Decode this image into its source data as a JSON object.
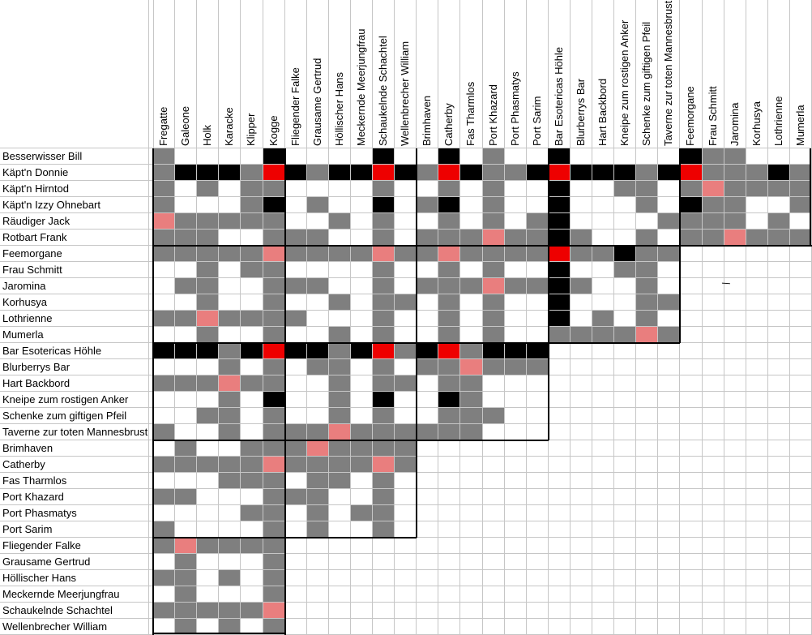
{
  "sheet": {
    "cell_colors": {
      "w": "#ffffff",
      "g": "#7f7f7f",
      "b": "#000000",
      "r": "#ee0000",
      "p": "#e97e7e"
    },
    "columns": [
      "Fregatte",
      "Galeone",
      "Holk",
      "Karacke",
      "Klipper",
      "Kogge",
      "Fliegender Falke",
      "Grausame Gertrud",
      "Höllischer Hans",
      "Meckernde Meerjungfrau",
      "Schaukelnde Schachtel",
      "Wellenbrecher William",
      "Brimhaven",
      "Catherby",
      "Fas Tharmlos",
      "Port Khazard",
      "Port Phasmatys",
      "Port Sarim",
      "Bar Esotericas Höhle",
      "Blurberrys Bar",
      "Hart Backbord",
      "Kneipe zum rostigen Anker",
      "Schenke zum giftigen Pfeil",
      "Taverne zur toten Mannesbrust",
      "Feemorgane",
      "Frau Schmitt",
      "Jaromina",
      "Korhusya",
      "Lothrienne",
      "Mumerla"
    ],
    "rows": [
      {
        "label": "Besserwisser Bill",
        "cells": "gwwwwbwwwwbwwbwgwwbwwwwwbggwww"
      },
      {
        "label": "Käpt'n Donnie",
        "cells": "gbbbgrbgbbrbgrbggbrbbbgbrgggbg"
      },
      {
        "label": "Käpt'n Hirntod",
        "cells": "gwgwggwwwwgwwgwgwwbwwggwgpgggg"
      },
      {
        "label": "Käpt'n Izzy Ohnebart",
        "cells": "gwwwgbwgwwbwgbwgwwbwwwgwbggwwg"
      },
      {
        "label": "Räudiger Jack",
        "cells": "pgggggwwgwgwwgwgwgbwwwwggggwgw"
      },
      {
        "label": "Rotbart Frank",
        "cells": "gggwwgggwwgwgggpggbgwwgwggpggg"
      },
      {
        "label": "Feemorgane",
        "cells": "gggggpggggpggpggggrggbgg"
      },
      {
        "label": "Frau Schmitt",
        "cells": "wwgwggwwwwgwwgwgwwbwwggw"
      },
      {
        "label": "Jaromina",
        "cells": "wggwwgggwwgwgggpggbgwwgw"
      },
      {
        "label": "Korhusya",
        "cells": "wwgwwgwwgwggwgwgwwbwwwgg"
      },
      {
        "label": "Lothrienne",
        "cells": "ggpggggwwwgwwgwgwwbwgwgw"
      },
      {
        "label": "Mumerla",
        "cells": "wwgwwgwwgwgwwgwgwwggggpg"
      },
      {
        "label": "Bar Esotericas Höhle",
        "cells": "bbbgbrbbgbrgbrgbbb"
      },
      {
        "label": "Blurberrys Bar",
        "cells": "wwwgwgwggwgwggpggg"
      },
      {
        "label": "Hart Backbord",
        "cells": "gggpggwwgwggwggwww"
      },
      {
        "label": "Kneipe zum rostigen Anker",
        "cells": "wwwgwbwwgwbwwbgwww"
      },
      {
        "label": "Schenke zum giftigen Pfeil",
        "cells": "wwggwgwwgwgwwgggww"
      },
      {
        "label": "Taverne zur toten Mannesbrust",
        "cells": "gwwgwgggpggggggwww"
      },
      {
        "label": "Brimhaven",
        "cells": "wgwwgggpgggg"
      },
      {
        "label": "Catherby",
        "cells": "gggggpggggpg"
      },
      {
        "label": "Fas Tharmlos",
        "cells": "wwwgggwggwgw"
      },
      {
        "label": "Port Khazard",
        "cells": "ggwwwgggwwgw"
      },
      {
        "label": "Port Phasmatys",
        "cells": "wwwwggwgwggw"
      },
      {
        "label": "Port Sarim",
        "cells": "gwwwwgwgwwgw"
      },
      {
        "label": "Fliegender Falke",
        "cells": "gpgggg"
      },
      {
        "label": "Grausame Gertrud",
        "cells": "wgwwwg"
      },
      {
        "label": "Höllischer Hans",
        "cells": "ggwgwg"
      },
      {
        "label": "Meckernde Meerjungfrau",
        "cells": "wgwwwg"
      },
      {
        "label": "Schaukelnde Schachtel",
        "cells": "gggggp"
      },
      {
        "label": "Wellenbrecher William",
        "cells": "wgwgwg"
      }
    ],
    "annotation": {
      "text": "/"
    }
  }
}
